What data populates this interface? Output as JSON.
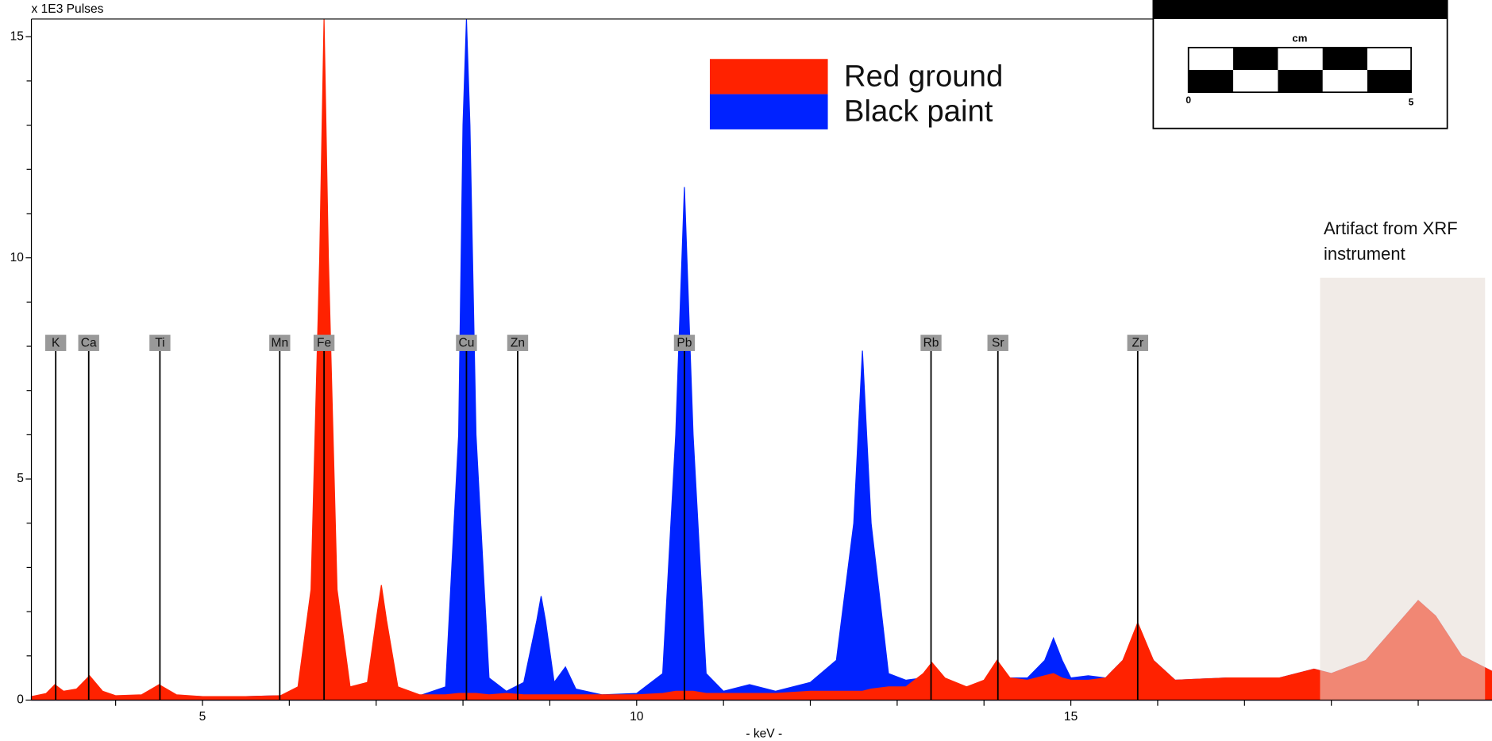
{
  "chart_data": {
    "type": "area",
    "y_label": "x 1E3 Pulses",
    "x_label": "- keV -",
    "xlim": [
      3.03,
      19.85
    ],
    "ylim": [
      0,
      15.4
    ],
    "xticks": [
      5,
      10,
      15
    ],
    "xminorticks": [
      4,
      6,
      7,
      8,
      9,
      11,
      12,
      13,
      14,
      16,
      17,
      18,
      19
    ],
    "yticks": [
      0,
      5,
      10,
      15
    ],
    "yminorticks": [
      1,
      2,
      3,
      4,
      6,
      7,
      8,
      9,
      11,
      12,
      13,
      14
    ],
    "x": [
      3.03,
      3.2,
      3.3,
      3.4,
      3.55,
      3.7,
      3.85,
      4.0,
      4.3,
      4.5,
      4.7,
      5.0,
      5.5,
      5.9,
      6.1,
      6.25,
      6.35,
      6.4,
      6.45,
      6.55,
      6.7,
      6.9,
      7.0,
      7.06,
      7.12,
      7.25,
      7.5,
      7.8,
      7.95,
      8.0,
      8.04,
      8.08,
      8.15,
      8.3,
      8.5,
      8.7,
      8.85,
      8.9,
      8.95,
      9.05,
      9.18,
      9.3,
      9.6,
      10.0,
      10.3,
      10.45,
      10.55,
      10.65,
      10.8,
      11.0,
      11.3,
      11.6,
      12.0,
      12.3,
      12.5,
      12.6,
      12.7,
      12.9,
      13.1,
      13.3,
      13.4,
      13.55,
      13.8,
      14.0,
      14.15,
      14.3,
      14.5,
      14.7,
      14.8,
      14.9,
      15.0,
      15.2,
      15.4,
      15.6,
      15.77,
      15.95,
      16.2,
      16.8,
      17.4,
      17.8,
      18.0,
      18.4,
      18.8,
      19.0,
      19.2,
      19.5,
      19.85
    ],
    "series": [
      {
        "name": "Black paint",
        "color": "#0022ff",
        "values": [
          0.08,
          0.12,
          0.25,
          0.15,
          0.18,
          0.3,
          0.15,
          0.08,
          0.1,
          0.2,
          0.1,
          0.08,
          0.08,
          0.1,
          0.1,
          0.2,
          0.3,
          0.4,
          0.3,
          0.2,
          0.1,
          0.1,
          0.12,
          0.15,
          0.12,
          0.1,
          0.1,
          0.3,
          6,
          13,
          15.4,
          13,
          6,
          0.5,
          0.2,
          0.4,
          1.8,
          2.35,
          1.8,
          0.4,
          0.75,
          0.25,
          0.12,
          0.15,
          0.6,
          6,
          11.6,
          6,
          0.6,
          0.2,
          0.35,
          0.2,
          0.4,
          0.9,
          4,
          7.9,
          4,
          0.6,
          0.45,
          0.5,
          0.6,
          0.4,
          0.3,
          0.4,
          0.8,
          0.5,
          0.5,
          0.9,
          1.4,
          0.9,
          0.5,
          0.55,
          0.5,
          0.9,
          1.7,
          0.9,
          0.45,
          0.5,
          0.5,
          0.7,
          0.6,
          0.9,
          1.8,
          2.25,
          1.9,
          1.0,
          0.65
        ]
      },
      {
        "name": "Red ground",
        "color": "#ff2200",
        "values": [
          0.08,
          0.15,
          0.35,
          0.2,
          0.25,
          0.55,
          0.2,
          0.1,
          0.12,
          0.35,
          0.12,
          0.08,
          0.08,
          0.1,
          0.3,
          2.5,
          10,
          15.4,
          10,
          2.5,
          0.3,
          0.4,
          1.8,
          2.6,
          1.8,
          0.3,
          0.12,
          0.12,
          0.15,
          0.15,
          0.15,
          0.15,
          0.15,
          0.12,
          0.15,
          0.12,
          0.12,
          0.12,
          0.12,
          0.12,
          0.12,
          0.12,
          0.12,
          0.12,
          0.15,
          0.2,
          0.2,
          0.2,
          0.15,
          0.15,
          0.15,
          0.15,
          0.2,
          0.2,
          0.2,
          0.2,
          0.25,
          0.3,
          0.3,
          0.6,
          0.85,
          0.5,
          0.3,
          0.45,
          0.9,
          0.5,
          0.45,
          0.55,
          0.6,
          0.5,
          0.45,
          0.45,
          0.5,
          0.9,
          1.75,
          0.9,
          0.45,
          0.5,
          0.5,
          0.7,
          0.6,
          0.9,
          1.8,
          2.25,
          1.9,
          1.0,
          0.65
        ]
      }
    ],
    "element_markers": [
      {
        "label": "K",
        "x": 3.31
      },
      {
        "label": "Ca",
        "x": 3.69
      },
      {
        "label": "Ti",
        "x": 4.51
      },
      {
        "label": "Mn",
        "x": 5.89
      },
      {
        "label": "Fe",
        "x": 6.4
      },
      {
        "label": "Cu",
        "x": 8.04
      },
      {
        "label": "Zn",
        "x": 8.63
      },
      {
        "label": "Pb",
        "x": 10.55
      },
      {
        "label": "Rb",
        "x": 13.39
      },
      {
        "label": "Sr",
        "x": 14.16
      },
      {
        "label": "Zr",
        "x": 15.77
      }
    ],
    "shaded_region": {
      "x": [
        17.87,
        19.77
      ],
      "label": "Artifact from XRF instrument",
      "color": "#e6dad3"
    },
    "legend_order": [
      1,
      0
    ],
    "inset": {
      "unit": "cm",
      "scale_labels": [
        "0",
        "5"
      ]
    }
  }
}
